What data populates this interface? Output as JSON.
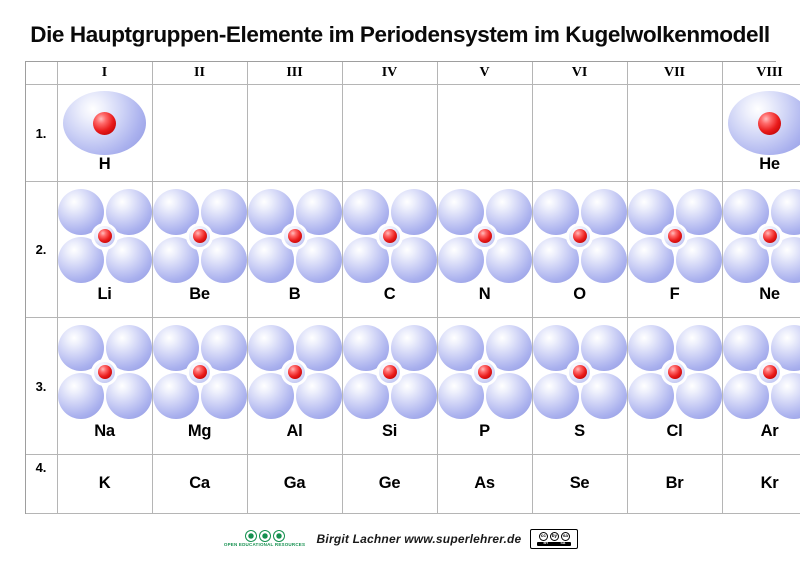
{
  "title": "Die Hauptgruppen-Elemente im Periodensystem im Kugelwolkenmodell",
  "table": {
    "group_headers": [
      "I",
      "II",
      "III",
      "IV",
      "V",
      "VI",
      "VII",
      "VIII"
    ],
    "periods": [
      {
        "label": "1.",
        "cells": [
          {
            "symbol": "H",
            "model": "one-cloud"
          },
          {},
          {},
          {},
          {},
          {},
          {},
          {
            "symbol": "He",
            "model": "one-cloud"
          }
        ]
      },
      {
        "label": "2.",
        "cells": [
          {
            "symbol": "Li",
            "model": "four-clouds"
          },
          {
            "symbol": "Be",
            "model": "four-clouds"
          },
          {
            "symbol": "B",
            "model": "four-clouds"
          },
          {
            "symbol": "C",
            "model": "four-clouds"
          },
          {
            "symbol": "N",
            "model": "four-clouds"
          },
          {
            "symbol": "O",
            "model": "four-clouds"
          },
          {
            "symbol": "F",
            "model": "four-clouds"
          },
          {
            "symbol": "Ne",
            "model": "four-clouds"
          }
        ]
      },
      {
        "label": "3.",
        "cells": [
          {
            "symbol": "Na",
            "model": "four-clouds"
          },
          {
            "symbol": "Mg",
            "model": "four-clouds"
          },
          {
            "symbol": "Al",
            "model": "four-clouds"
          },
          {
            "symbol": "Si",
            "model": "four-clouds"
          },
          {
            "symbol": "P",
            "model": "four-clouds"
          },
          {
            "symbol": "S",
            "model": "four-clouds"
          },
          {
            "symbol": "Cl",
            "model": "four-clouds"
          },
          {
            "symbol": "Ar",
            "model": "four-clouds"
          }
        ]
      },
      {
        "label": "4.",
        "cells": [
          {
            "symbol": "K"
          },
          {
            "symbol": "Ca"
          },
          {
            "symbol": "Ga"
          },
          {
            "symbol": "Ge"
          },
          {
            "symbol": "As"
          },
          {
            "symbol": "Se"
          },
          {
            "symbol": "Br"
          },
          {
            "symbol": "Kr"
          }
        ]
      }
    ]
  },
  "footer": {
    "oer_caption": "OPEN EDUCATIONAL RESOURCES",
    "credit": "Birgit Lachner www.superlehrer.de",
    "license": {
      "cc": "cc",
      "by": "by",
      "sa": "sa",
      "bar_left": "BY",
      "bar_right": "SA"
    }
  },
  "colors": {
    "cloud_edge": "#8d95e0",
    "cloud_highlight": "#ffffff",
    "nucleus_red": "#ea1c1c",
    "oer_green": "#15904f",
    "grid_line": "#b5b5b5"
  }
}
